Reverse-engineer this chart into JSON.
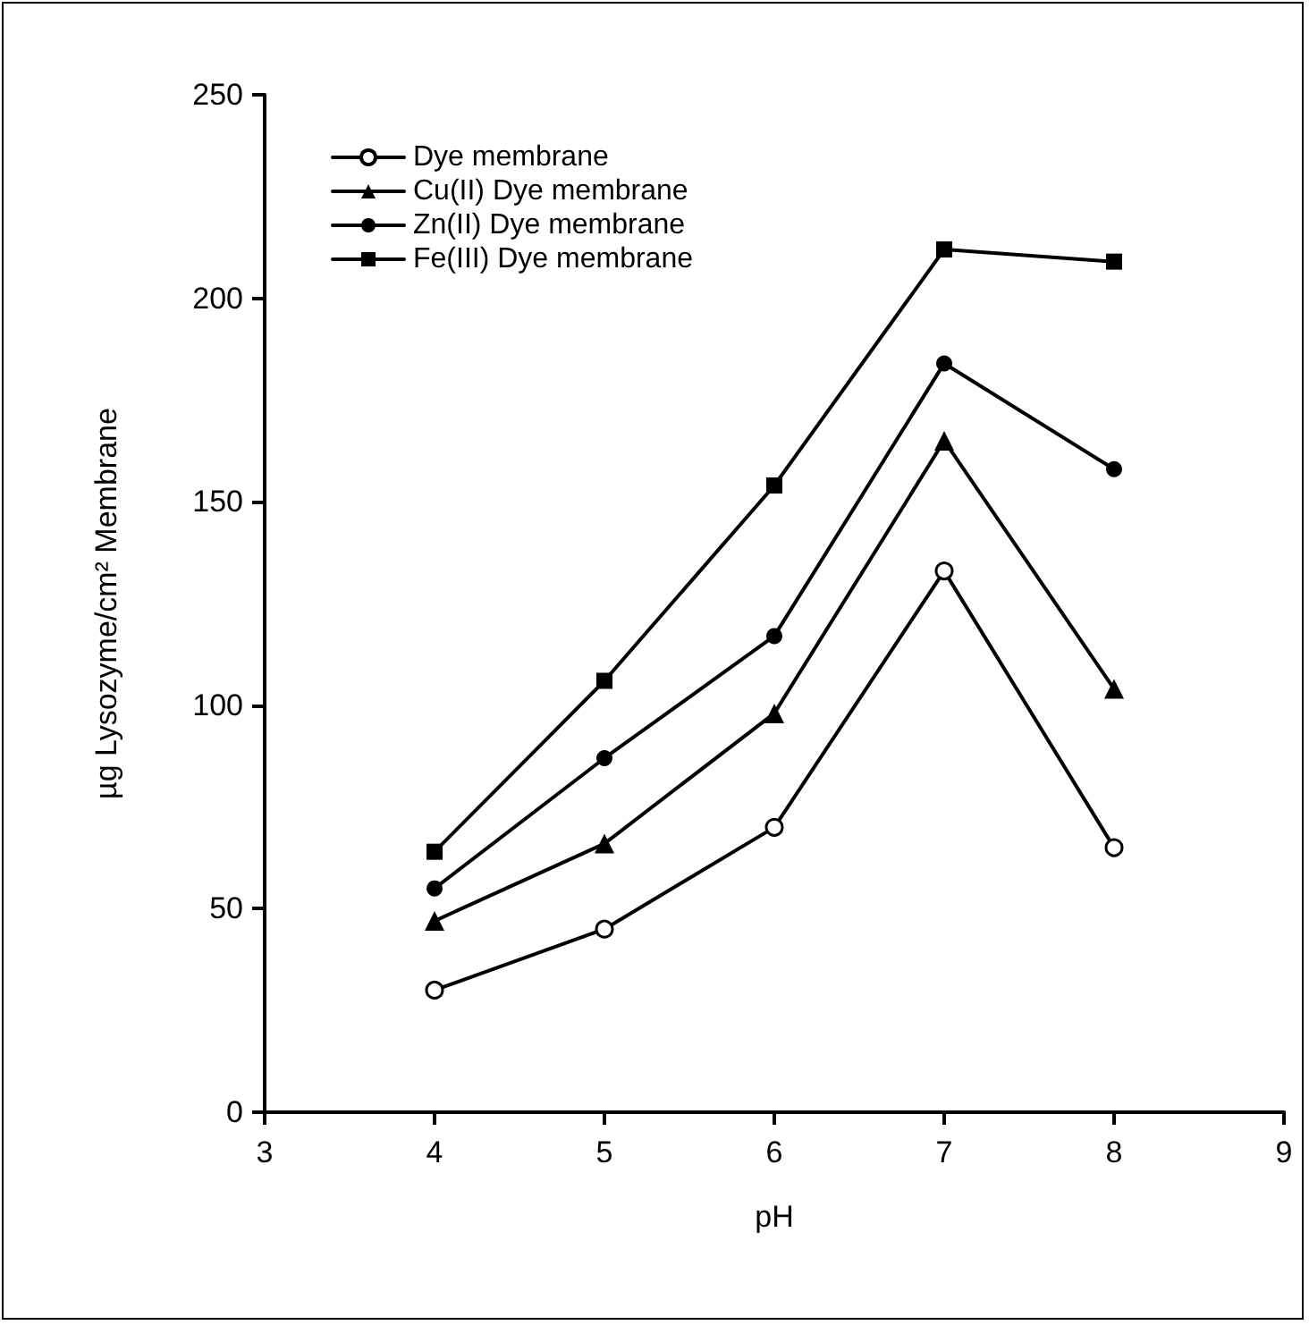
{
  "chart_data": {
    "type": "line",
    "xlabel": "pH",
    "ylabel": "µg Lysozyme/cm² Membrane",
    "x": [
      4,
      5,
      6,
      7,
      8
    ],
    "series": [
      {
        "name": "Dye membrane",
        "color": "#000000",
        "marker": "circle",
        "values": [
          30,
          45,
          70,
          133,
          65
        ]
      },
      {
        "name": "Cu(II) Dye membrane",
        "color": "#000000",
        "marker": "triangle",
        "values": [
          47,
          66,
          98,
          165,
          104
        ]
      },
      {
        "name": "Zn(II) Dye membrane",
        "color": "#000000",
        "marker": "circle",
        "values": [
          55,
          87,
          117,
          184,
          158
        ]
      },
      {
        "name": "Fe(III) Dye membrane",
        "color": "#000000",
        "marker": "square",
        "values": [
          64,
          106,
          154,
          212,
          209
        ]
      }
    ],
    "xlim": [
      3,
      9
    ],
    "xticks": [
      3,
      4,
      5,
      6,
      7,
      8,
      9
    ],
    "ylim": [
      0,
      250
    ],
    "yticks": [
      0,
      50,
      100,
      150,
      200,
      250
    ],
    "grid": false,
    "legend": "top left",
    "line_style": "solid"
  }
}
